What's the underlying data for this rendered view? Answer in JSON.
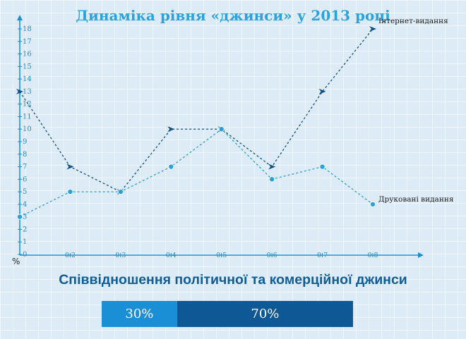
{
  "title": "Динаміка рівня «джинси» у 2013 році",
  "subtitle": "Співвідношення політичної та комерційної джинси",
  "ratio": {
    "political_label": "30%",
    "commercial_label": "70%",
    "political_value": 30,
    "commercial_value": 70,
    "colors": {
      "political": "#1a8fd6",
      "commercial": "#0e5896"
    }
  },
  "chart_data": {
    "type": "line",
    "title": "Динаміка рівня «джинси» у 2013 році",
    "ylabel": "%",
    "xlabel": "",
    "ylim": [
      0,
      18
    ],
    "yticks": [
      "0",
      "1",
      "2",
      "3",
      "4",
      "5",
      "6",
      "7",
      "8",
      "9",
      "10",
      "11",
      "12",
      "13",
      "14",
      "15",
      "16",
      "17",
      "18"
    ],
    "x": [
      0.1,
      0.2,
      0.3,
      0.4,
      0.5,
      0.6,
      0.7,
      0.8
    ],
    "xtick_labels": [
      "0.2",
      "0.3",
      "0.4",
      "0.5",
      "0.6",
      "0.7",
      "0.8"
    ],
    "grid": true,
    "series": [
      {
        "name": "Інтернет-видання",
        "values": [
          13,
          7,
          5,
          10,
          10,
          7,
          13,
          18
        ],
        "color": "#0e4f86"
      },
      {
        "name": "Друковані видання",
        "values": [
          3,
          5,
          5,
          7,
          10,
          6,
          7,
          4
        ],
        "color": "#2a9fd8"
      }
    ]
  }
}
